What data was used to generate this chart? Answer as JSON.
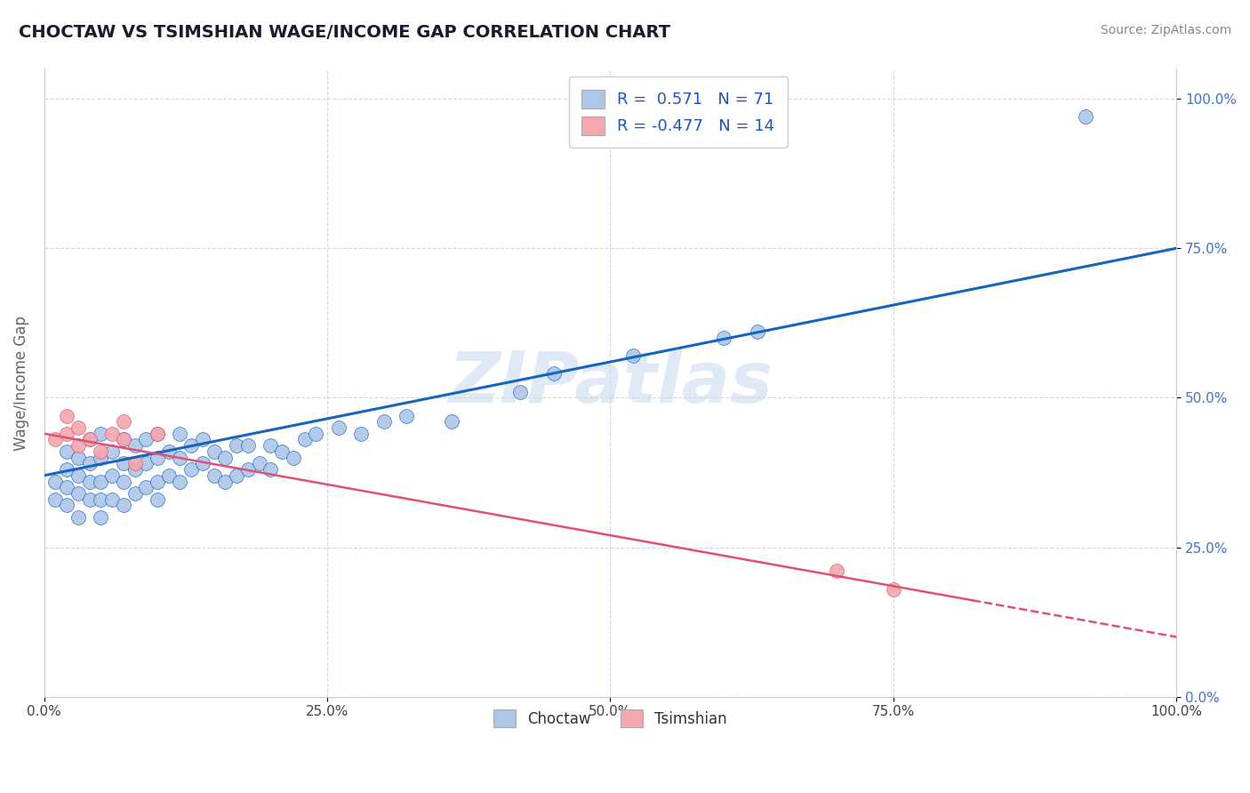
{
  "title": "CHOCTAW VS TSIMSHIAN WAGE/INCOME GAP CORRELATION CHART",
  "source": "Source: ZipAtlas.com",
  "ylabel": "Wage/Income Gap",
  "legend_label1": "Choctaw",
  "legend_label2": "Tsimshian",
  "r1": 0.571,
  "n1": 71,
  "r2": -0.477,
  "n2": 14,
  "color_choctaw": "#aec6e8",
  "color_tsimshian": "#f4a7b0",
  "line_color_choctaw": "#1565c0",
  "line_color_tsimshian": "#e05070",
  "watermark": "ZIPatlas",
  "watermark_color": "#c8d8f0",
  "background_color": "#ffffff",
  "grid_color": "#c8d4e8",
  "choctaw_x": [
    0.01,
    0.01,
    0.02,
    0.02,
    0.02,
    0.02,
    0.03,
    0.03,
    0.03,
    0.03,
    0.04,
    0.04,
    0.04,
    0.04,
    0.05,
    0.05,
    0.05,
    0.05,
    0.05,
    0.06,
    0.06,
    0.06,
    0.07,
    0.07,
    0.07,
    0.07,
    0.08,
    0.08,
    0.08,
    0.09,
    0.09,
    0.09,
    0.1,
    0.1,
    0.1,
    0.1,
    0.11,
    0.11,
    0.12,
    0.12,
    0.12,
    0.13,
    0.13,
    0.14,
    0.14,
    0.15,
    0.15,
    0.16,
    0.16,
    0.17,
    0.17,
    0.18,
    0.18,
    0.19,
    0.2,
    0.2,
    0.21,
    0.22,
    0.23,
    0.24,
    0.26,
    0.28,
    0.3,
    0.32,
    0.36,
    0.42,
    0.45,
    0.52,
    0.6,
    0.63,
    0.92
  ],
  "choctaw_y": [
    0.33,
    0.36,
    0.32,
    0.35,
    0.38,
    0.41,
    0.3,
    0.34,
    0.37,
    0.4,
    0.33,
    0.36,
    0.39,
    0.43,
    0.3,
    0.33,
    0.36,
    0.4,
    0.44,
    0.33,
    0.37,
    0.41,
    0.32,
    0.36,
    0.39,
    0.43,
    0.34,
    0.38,
    0.42,
    0.35,
    0.39,
    0.43,
    0.33,
    0.36,
    0.4,
    0.44,
    0.37,
    0.41,
    0.36,
    0.4,
    0.44,
    0.38,
    0.42,
    0.39,
    0.43,
    0.37,
    0.41,
    0.36,
    0.4,
    0.37,
    0.42,
    0.38,
    0.42,
    0.39,
    0.38,
    0.42,
    0.41,
    0.4,
    0.43,
    0.44,
    0.45,
    0.44,
    0.46,
    0.47,
    0.46,
    0.51,
    0.54,
    0.57,
    0.6,
    0.61,
    0.97
  ],
  "tsimshian_x": [
    0.01,
    0.02,
    0.02,
    0.03,
    0.03,
    0.04,
    0.05,
    0.06,
    0.07,
    0.07,
    0.08,
    0.1,
    0.7,
    0.75
  ],
  "tsimshian_y": [
    0.43,
    0.44,
    0.47,
    0.42,
    0.45,
    0.43,
    0.41,
    0.44,
    0.43,
    0.46,
    0.39,
    0.44,
    0.21,
    0.18
  ],
  "xlim": [
    0.0,
    1.0
  ],
  "ylim": [
    0.0,
    1.05
  ],
  "yticks": [
    0.0,
    0.25,
    0.5,
    0.75,
    1.0
  ],
  "xticks": [
    0.0,
    0.25,
    0.5,
    0.75,
    1.0
  ],
  "tick_labels_x": [
    "0.0%",
    "25.0%",
    "50.0%",
    "75.0%",
    "100.0%"
  ],
  "tick_labels_y": [
    "0.0%",
    "25.0%",
    "50.0%",
    "75.0%",
    "100.0%"
  ],
  "choctaw_line_x0": 0.0,
  "choctaw_line_y0": 0.37,
  "choctaw_line_x1": 1.0,
  "choctaw_line_y1": 0.75,
  "tsimshian_line_x0": 0.0,
  "tsimshian_line_y0": 0.44,
  "tsimshian_line_x1": 1.0,
  "tsimshian_line_y1": 0.1
}
